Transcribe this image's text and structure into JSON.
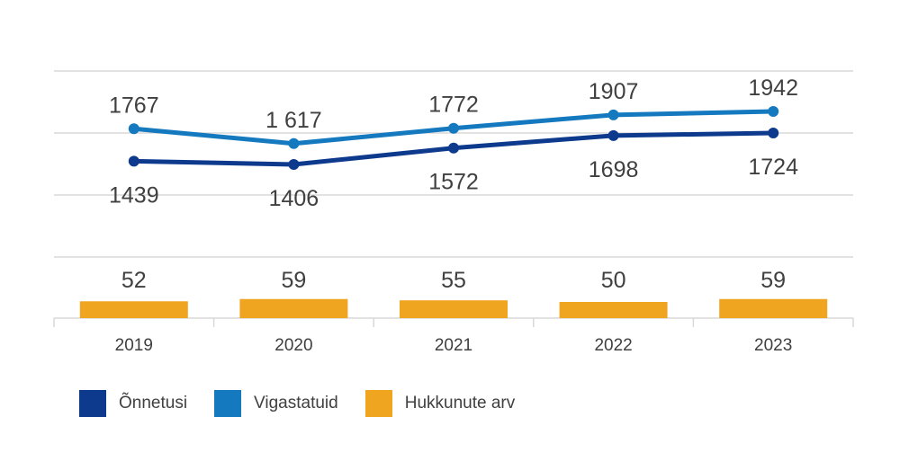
{
  "chart_data": {
    "type": "line+bar",
    "categories": [
      "2019",
      "2020",
      "2021",
      "2022",
      "2023"
    ],
    "series": [
      {
        "name": "Õnnetusi",
        "type": "line",
        "color": "#0D3A8C",
        "values": [
          1439,
          1406,
          1572,
          1698,
          1724
        ],
        "labels": [
          "1439",
          "1406",
          "1572",
          "1698",
          "1724"
        ],
        "label_position": "below"
      },
      {
        "name": "Vigastatuid",
        "type": "line",
        "color": "#1479BE",
        "values": [
          1767,
          1617,
          1772,
          1907,
          1942
        ],
        "labels": [
          "1767",
          "1 617",
          "1772",
          "1907",
          "1942"
        ],
        "label_position": "above"
      },
      {
        "name": "Hukkunute arv",
        "type": "bar",
        "color": "#F0A521",
        "values": [
          52,
          59,
          55,
          50,
          59
        ],
        "labels": [
          "52",
          "59",
          "55",
          "50",
          "59"
        ]
      }
    ],
    "grid": true,
    "legend_position": "bottom-left"
  }
}
